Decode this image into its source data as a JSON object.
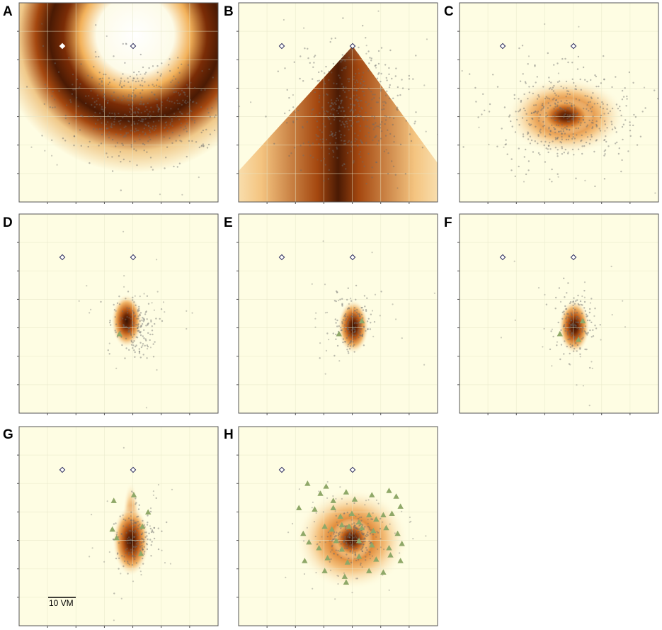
{
  "figure": {
    "scale_bar_label": "10 VM",
    "colors": {
      "background": "#fefde3",
      "heat_mid": "#e8872a",
      "heat_dark": "#4a1a04",
      "landmark_filled": "#ffffff",
      "landmark_stroke": "#2a2a5a",
      "sample_dot": "#6b6b6b",
      "triangle": "#8fa868",
      "grid": "#e6e6c8",
      "frame": "#555555"
    },
    "panels": [
      {
        "letter": "A",
        "density": "ring",
        "triangles": []
      },
      {
        "letter": "B",
        "density": "cone",
        "triangles": []
      },
      {
        "letter": "C",
        "density": "blob-wide",
        "triangles": []
      },
      {
        "letter": "D",
        "density": "blob-small",
        "triangles": [
          [
            -1.0,
            0.6
          ]
        ]
      },
      {
        "letter": "E",
        "density": "blob-small",
        "triangles": [
          [
            -1.0,
            0.6
          ],
          [
            0.6,
            -0.3
          ]
        ]
      },
      {
        "letter": "F",
        "density": "blob-small",
        "triangles": [
          [
            -1.0,
            0.6
          ],
          [
            0.6,
            -0.3
          ],
          [
            0.3,
            1.0
          ]
        ]
      },
      {
        "letter": "G",
        "density": "blob-elongated",
        "triangles": [
          [
            -1.4,
            -2.6
          ],
          [
            0.0,
            -3.0
          ],
          [
            1.0,
            -1.8
          ],
          [
            -1.5,
            -0.6
          ],
          [
            0.6,
            -0.8
          ],
          [
            -1.2,
            0.0
          ],
          [
            0.5,
            1.1
          ]
        ]
      },
      {
        "letter": "H",
        "density": "blob-large",
        "triangles": [
          [
            -3.2,
            -3.8
          ],
          [
            -1.9,
            -3.6
          ],
          [
            -1.4,
            -2.6
          ],
          [
            -2.3,
            -3.1
          ],
          [
            -0.5,
            -3.2
          ],
          [
            0.1,
            -2.7
          ],
          [
            1.3,
            -3.0
          ],
          [
            2.5,
            -3.3
          ],
          [
            3.0,
            -2.9
          ],
          [
            -3.8,
            -2.1
          ],
          [
            -2.7,
            -2.0
          ],
          [
            -1.4,
            -2.1
          ],
          [
            -0.9,
            -1.5
          ],
          [
            -0.1,
            -1.7
          ],
          [
            0.4,
            -1.1
          ],
          [
            1.1,
            -1.6
          ],
          [
            1.6,
            -1.3
          ],
          [
            2.1,
            -1.6
          ],
          [
            2.7,
            -1.7
          ],
          [
            3.3,
            -2.2
          ],
          [
            -3.5,
            -0.3
          ],
          [
            -2.0,
            -0.8
          ],
          [
            -1.5,
            -0.6
          ],
          [
            -0.8,
            -0.9
          ],
          [
            -0.3,
            -0.8
          ],
          [
            0.6,
            -0.7
          ],
          [
            1.4,
            -0.5
          ],
          [
            2.3,
            -0.7
          ],
          [
            3.1,
            -0.3
          ],
          [
            -3.1,
            0.3
          ],
          [
            -2.4,
            0.7
          ],
          [
            -1.2,
            0.2
          ],
          [
            -0.8,
            0.8
          ],
          [
            0.4,
            0.2
          ],
          [
            1.3,
            0.5
          ],
          [
            2.5,
            0.7
          ],
          [
            3.4,
            0.4
          ],
          [
            -3.4,
            1.6
          ],
          [
            -1.8,
            1.4
          ],
          [
            -0.4,
            1.7
          ],
          [
            0.4,
            1.3
          ],
          [
            1.6,
            1.5
          ],
          [
            2.6,
            1.2
          ],
          [
            3.3,
            1.6
          ],
          [
            -2.0,
            2.3
          ],
          [
            -0.6,
            2.7
          ],
          [
            1.1,
            2.3
          ],
          [
            2.1,
            2.4
          ],
          [
            -0.5,
            3.1
          ]
        ]
      }
    ]
  }
}
